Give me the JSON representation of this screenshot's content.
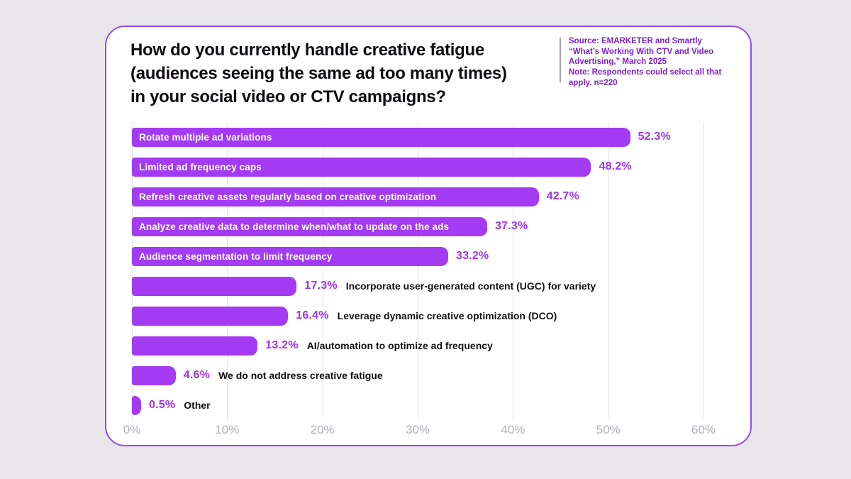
{
  "header": {
    "title_lines": [
      "How do you currently handle creative fatigue",
      "(audiences seeing the same ad too many times)",
      "in your social video or CTV campaigns?"
    ],
    "source_lines": [
      "Source: EMARKETER and Smartly",
      "“What’s Working With CTV and Video",
      "Advertising,” March 2025",
      "Note: Respondents could select all that",
      "apply. n=220"
    ]
  },
  "chart_data": {
    "type": "bar",
    "orientation": "horizontal",
    "title": "How do you currently handle creative fatigue (audiences seeing the same ad too many times) in your social video or CTV campaigns?",
    "categories": [
      "Rotate multiple ad variations",
      "Limited ad frequency caps",
      "Refresh creative assets regularly based on creative optimization",
      "Analyze creative data to determine when/what to update on the ads",
      "Audience segmentation to limit frequency",
      "Incorporate user-generated content (UGC) for variety",
      "Leverage dynamic creative optimization (DCO)",
      "AI/automation to optimize ad frequency",
      "We do not address creative fatigue",
      "Other"
    ],
    "values": [
      52.3,
      48.2,
      42.7,
      37.3,
      33.2,
      17.3,
      16.4,
      13.2,
      4.6,
      0.5
    ],
    "value_labels": [
      "52.3%",
      "48.2%",
      "42.7%",
      "37.3%",
      "33.2%",
      "17.3%",
      "16.4%",
      "13.2%",
      "4.6%",
      "0.5%"
    ],
    "label_positions": [
      "inside",
      "inside",
      "inside",
      "inside",
      "inside",
      "outside",
      "outside",
      "outside",
      "outside",
      "outside"
    ],
    "x_ticks": [
      "0%",
      "10%",
      "20%",
      "30%",
      "40%",
      "50%",
      "60%"
    ],
    "xlim": [
      0,
      60
    ],
    "grid": true,
    "legend": "none",
    "bar_color": "#a33bf3",
    "value_label_color": "#a133f2",
    "axis_label_color": "#b3adbb"
  }
}
